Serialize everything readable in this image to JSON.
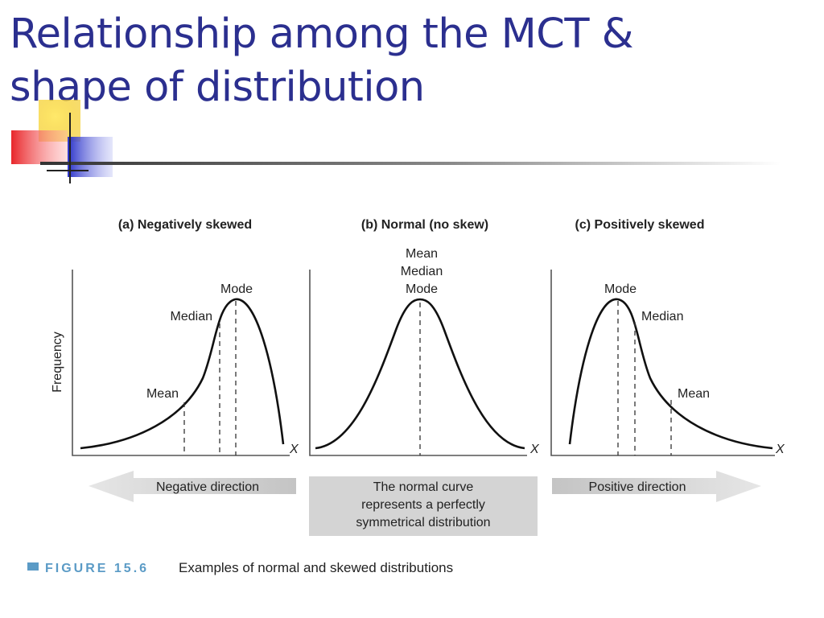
{
  "title": {
    "line1": "Relationship among the MCT &",
    "line2": "shape of distribution"
  },
  "colors": {
    "title": "#2b2f8f",
    "accent_yellow": "#f7d21e",
    "accent_red": "#e8262a",
    "accent_blue": "#2b33c9"
  },
  "figure": {
    "y_axis_label": "Frequency",
    "panels": [
      {
        "title": "(a) Negatively skewed",
        "x_label": "X",
        "labels": {
          "mode": "Mode",
          "median": "Median",
          "mean": "Mean"
        },
        "arrow_label": "Negative direction"
      },
      {
        "title": "(b) Normal (no skew)",
        "x_label": "X",
        "labels": {
          "mean": "Mean",
          "median": "Median",
          "mode": "Mode"
        },
        "box_lines": [
          "The normal curve",
          "represents a perfectly",
          "symmetrical distribution"
        ]
      },
      {
        "title": "(c) Positively skewed",
        "x_label": "X",
        "labels": {
          "mode": "Mode",
          "median": "Median",
          "mean": "Mean"
        },
        "arrow_label": "Positive direction"
      }
    ],
    "caption_number": "FIGURE 15.6",
    "caption_text": "Examples of normal and skewed distributions"
  }
}
